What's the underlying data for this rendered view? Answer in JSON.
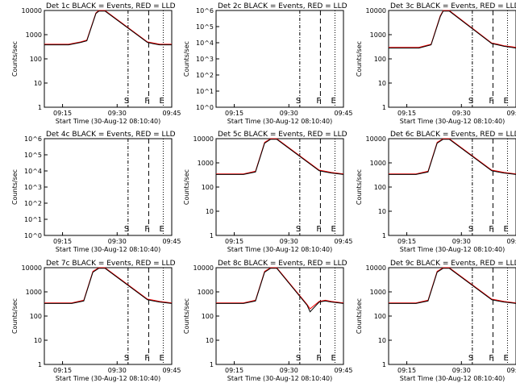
{
  "colors": {
    "events": "#000000",
    "lld": "#ff0000",
    "axis": "#000000",
    "background": "#ffffff"
  },
  "legend_text": "BLACK = Events, RED = LLD",
  "chart_data": [
    {
      "type": "line",
      "title": "Det 1c BLACK = Events, RED = LLD",
      "xlabel": "Start Time (30-Aug-12 08:10:40)",
      "ylabel": "Counts/sec",
      "xlim": [
        0,
        2100
      ],
      "xticks": [
        {
          "v": 300,
          "label": "09:15"
        },
        {
          "v": 1200,
          "label": "09:30"
        },
        {
          "v": 2100,
          "label": "09:45"
        }
      ],
      "yscale": "log",
      "ylim": [
        1,
        10000
      ],
      "ytick_labels": [
        "1",
        "10",
        "100",
        "1000",
        "10000"
      ],
      "markers": [
        {
          "x": 1380,
          "label": "S",
          "style": "dashdot"
        },
        {
          "x": 1720,
          "label": "F",
          "style": "dashed"
        },
        {
          "x": 1960,
          "label": "E",
          "style": "dotted"
        }
      ],
      "series": [
        {
          "name": "LLD",
          "color": "#ff0000",
          "x": [
            0,
            400,
            600,
            700,
            850,
            900,
            1000,
            1700,
            1800,
            1900,
            2100
          ],
          "y": [
            400,
            400,
            500,
            600,
            8000,
            10000,
            10000,
            500,
            450,
            400,
            400
          ]
        },
        {
          "name": "Events",
          "color": "#000000",
          "x": [
            0,
            400,
            600,
            700,
            850,
            900,
            1000,
            1700,
            1800,
            1900,
            2100
          ],
          "y": [
            380,
            380,
            480,
            560,
            7500,
            9500,
            9500,
            480,
            420,
            380,
            380
          ]
        }
      ]
    },
    {
      "type": "line",
      "title": "Det 2c BLACK = Events, RED = LLD",
      "xlabel": "Start Time (30-Aug-12 08:10:40)",
      "ylabel": "Counts/sec",
      "xlim": [
        0,
        2100
      ],
      "xticks": [
        {
          "v": 300,
          "label": "09:15"
        },
        {
          "v": 1200,
          "label": "09:30"
        },
        {
          "v": 2100,
          "label": "09:45"
        }
      ],
      "yscale": "log",
      "ylim": [
        1,
        1000000
      ],
      "ytick_labels": [
        "10^0",
        "10^1",
        "10^2",
        "10^3",
        "10^4",
        "10^5",
        "10^6"
      ],
      "markers": [
        {
          "x": 1380,
          "label": "S",
          "style": "dashdot"
        },
        {
          "x": 1720,
          "label": "F",
          "style": "dashed"
        },
        {
          "x": 1960,
          "label": "E",
          "style": "dotted"
        }
      ],
      "series": []
    },
    {
      "type": "line",
      "title": "Det 3c BLACK = Events, RED = LLD",
      "xlabel": "Start Time (30-Aug-12 08:10:40)",
      "ylabel": "Counts/sec",
      "xlim": [
        0,
        2100
      ],
      "xticks": [
        {
          "v": 300,
          "label": "09:15"
        },
        {
          "v": 1200,
          "label": "09:30"
        },
        {
          "v": 2100,
          "label": "09:45"
        }
      ],
      "yscale": "log",
      "ylim": [
        1,
        10000
      ],
      "ytick_labels": [
        "1",
        "10",
        "100",
        "1000",
        "10000"
      ],
      "markers": [
        {
          "x": 1380,
          "label": "S",
          "style": "dashdot"
        },
        {
          "x": 1720,
          "label": "F",
          "style": "dashed"
        },
        {
          "x": 1960,
          "label": "E",
          "style": "dotted"
        }
      ],
      "series": [
        {
          "name": "LLD",
          "color": "#ff0000",
          "x": [
            0,
            500,
            700,
            850,
            900,
            1000,
            1700,
            1800,
            1900,
            2100
          ],
          "y": [
            300,
            300,
            400,
            6000,
            10000,
            10000,
            450,
            400,
            350,
            300
          ]
        },
        {
          "name": "Events",
          "color": "#000000",
          "x": [
            0,
            500,
            700,
            850,
            900,
            1000,
            1700,
            1800,
            1900,
            2100
          ],
          "y": [
            280,
            280,
            380,
            5500,
            9500,
            9500,
            430,
            380,
            330,
            280
          ]
        }
      ]
    },
    {
      "type": "line",
      "title": "Det 4c BLACK = Events, RED = LLD",
      "xlabel": "Start Time (30-Aug-12 08:10:40)",
      "ylabel": "Counts/sec",
      "xlim": [
        0,
        2100
      ],
      "xticks": [
        {
          "v": 300,
          "label": "09:15"
        },
        {
          "v": 1200,
          "label": "09:30"
        },
        {
          "v": 2100,
          "label": "09:45"
        }
      ],
      "yscale": "log",
      "ylim": [
        1,
        1000000
      ],
      "ytick_labels": [
        "10^0",
        "10^1",
        "10^2",
        "10^3",
        "10^4",
        "10^5",
        "10^6"
      ],
      "markers": [
        {
          "x": 1380,
          "label": "S",
          "style": "dashdot"
        },
        {
          "x": 1720,
          "label": "F",
          "style": "dashed"
        },
        {
          "x": 1960,
          "label": "E",
          "style": "dotted"
        }
      ],
      "series": []
    },
    {
      "type": "line",
      "title": "Det 5c BLACK = Events, RED = LLD",
      "xlabel": "Start Time (30-Aug-12 08:10:40)",
      "ylabel": "Counts/sec",
      "xlim": [
        0,
        2100
      ],
      "xticks": [
        {
          "v": 300,
          "label": "09:15"
        },
        {
          "v": 1200,
          "label": "09:30"
        },
        {
          "v": 2100,
          "label": "09:45"
        }
      ],
      "yscale": "log",
      "ylim": [
        1,
        10000
      ],
      "ytick_labels": [
        "1",
        "10",
        "100",
        "1000",
        "10000"
      ],
      "markers": [
        {
          "x": 1380,
          "label": "S",
          "style": "dashdot"
        },
        {
          "x": 1720,
          "label": "F",
          "style": "dashed"
        },
        {
          "x": 1960,
          "label": "E",
          "style": "dotted"
        }
      ],
      "series": [
        {
          "name": "LLD",
          "color": "#ff0000",
          "x": [
            0,
            450,
            650,
            800,
            900,
            1000,
            1700,
            1800,
            1900,
            2100
          ],
          "y": [
            350,
            350,
            450,
            7000,
            10000,
            10000,
            500,
            450,
            400,
            350
          ]
        },
        {
          "name": "Events",
          "color": "#000000",
          "x": [
            0,
            450,
            650,
            800,
            900,
            1000,
            1700,
            1800,
            1900,
            2100
          ],
          "y": [
            330,
            330,
            420,
            6500,
            9500,
            9500,
            470,
            420,
            380,
            330
          ]
        }
      ]
    },
    {
      "type": "line",
      "title": "Det 6c BLACK = Events, RED = LLD",
      "xlabel": "Start Time (30-Aug-12 08:10:40)",
      "ylabel": "Counts/sec",
      "xlim": [
        0,
        2100
      ],
      "xticks": [
        {
          "v": 300,
          "label": "09:15"
        },
        {
          "v": 1200,
          "label": "09:30"
        },
        {
          "v": 2100,
          "label": "09:45"
        }
      ],
      "yscale": "log",
      "ylim": [
        1,
        10000
      ],
      "ytick_labels": [
        "1",
        "10",
        "100",
        "1000",
        "10000"
      ],
      "markers": [
        {
          "x": 1380,
          "label": "S",
          "style": "dashdot"
        },
        {
          "x": 1720,
          "label": "F",
          "style": "dashed"
        },
        {
          "x": 1960,
          "label": "E",
          "style": "dotted"
        }
      ],
      "series": [
        {
          "name": "LLD",
          "color": "#ff0000",
          "x": [
            0,
            450,
            650,
            800,
            900,
            1000,
            1700,
            1800,
            1900,
            2100
          ],
          "y": [
            350,
            350,
            450,
            7000,
            10000,
            10000,
            500,
            450,
            400,
            350
          ]
        },
        {
          "name": "Events",
          "color": "#000000",
          "x": [
            0,
            450,
            650,
            800,
            900,
            1000,
            1700,
            1800,
            1900,
            2100
          ],
          "y": [
            330,
            330,
            420,
            6500,
            9500,
            9500,
            470,
            420,
            380,
            330
          ]
        }
      ]
    },
    {
      "type": "line",
      "title": "Det 7c BLACK = Events, RED = LLD",
      "xlabel": "Start Time (30-Aug-12 08:10:40)",
      "ylabel": "Counts/sec",
      "xlim": [
        0,
        2100
      ],
      "xticks": [
        {
          "v": 300,
          "label": "09:15"
        },
        {
          "v": 1200,
          "label": "09:30"
        },
        {
          "v": 2100,
          "label": "09:45"
        }
      ],
      "yscale": "log",
      "ylim": [
        1,
        10000
      ],
      "ytick_labels": [
        "1",
        "10",
        "100",
        "1000",
        "10000"
      ],
      "markers": [
        {
          "x": 1380,
          "label": "S",
          "style": "dashdot"
        },
        {
          "x": 1720,
          "label": "F",
          "style": "dashed"
        },
        {
          "x": 1960,
          "label": "E",
          "style": "dotted"
        }
      ],
      "series": [
        {
          "name": "LLD",
          "color": "#ff0000",
          "x": [
            0,
            450,
            650,
            800,
            900,
            1000,
            1700,
            1800,
            1900,
            2100
          ],
          "y": [
            350,
            350,
            450,
            7000,
            10000,
            10000,
            500,
            450,
            400,
            350
          ]
        },
        {
          "name": "Events",
          "color": "#000000",
          "x": [
            0,
            450,
            650,
            800,
            900,
            1000,
            1700,
            1800,
            1900,
            2100
          ],
          "y": [
            330,
            330,
            420,
            6500,
            9500,
            9500,
            470,
            420,
            380,
            330
          ]
        }
      ]
    },
    {
      "type": "line",
      "title": "Det 8c BLACK = Events, RED = LLD",
      "xlabel": "Start Time (30-Aug-12 08:10:40)",
      "ylabel": "Counts/sec",
      "xlim": [
        0,
        2100
      ],
      "xticks": [
        {
          "v": 300,
          "label": "09:15"
        },
        {
          "v": 1200,
          "label": "09:30"
        },
        {
          "v": 2100,
          "label": "09:45"
        }
      ],
      "yscale": "log",
      "ylim": [
        1,
        10000
      ],
      "ytick_labels": [
        "1",
        "10",
        "100",
        "1000",
        "10000"
      ],
      "markers": [
        {
          "x": 1380,
          "label": "S",
          "style": "dashdot"
        },
        {
          "x": 1720,
          "label": "F",
          "style": "dashed"
        },
        {
          "x": 1960,
          "label": "E",
          "style": "dotted"
        }
      ],
      "series": [
        {
          "name": "LLD",
          "color": "#ff0000",
          "x": [
            0,
            450,
            650,
            800,
            900,
            1000,
            1500,
            1550,
            1700,
            1800,
            1900,
            2100
          ],
          "y": [
            350,
            350,
            450,
            7000,
            10000,
            10000,
            300,
            200,
            400,
            450,
            400,
            350
          ]
        },
        {
          "name": "Events",
          "color": "#000000",
          "x": [
            0,
            450,
            650,
            800,
            900,
            1000,
            1500,
            1550,
            1700,
            1800,
            1900,
            2100
          ],
          "y": [
            330,
            330,
            420,
            6500,
            9500,
            9500,
            280,
            150,
            380,
            420,
            380,
            330
          ]
        }
      ]
    },
    {
      "type": "line",
      "title": "Det 9c BLACK = Events, RED = LLD",
      "xlabel": "Start Time (30-Aug-12 08:10:40)",
      "ylabel": "Counts/sec",
      "xlim": [
        0,
        2100
      ],
      "xticks": [
        {
          "v": 300,
          "label": "09:15"
        },
        {
          "v": 1200,
          "label": "09:30"
        },
        {
          "v": 2100,
          "label": "09:45"
        }
      ],
      "yscale": "log",
      "ylim": [
        1,
        10000
      ],
      "ytick_labels": [
        "1",
        "10",
        "100",
        "1000",
        "10000"
      ],
      "markers": [
        {
          "x": 1380,
          "label": "S",
          "style": "dashdot"
        },
        {
          "x": 1720,
          "label": "F",
          "style": "dashed"
        },
        {
          "x": 1960,
          "label": "E",
          "style": "dotted"
        }
      ],
      "series": [
        {
          "name": "LLD",
          "color": "#ff0000",
          "x": [
            0,
            450,
            650,
            800,
            900,
            1000,
            1700,
            1800,
            1900,
            2100
          ],
          "y": [
            350,
            350,
            450,
            7000,
            10000,
            10000,
            500,
            450,
            400,
            350
          ]
        },
        {
          "name": "Events",
          "color": "#000000",
          "x": [
            0,
            450,
            650,
            800,
            900,
            1000,
            1700,
            1800,
            1900,
            2100
          ],
          "y": [
            330,
            330,
            420,
            6500,
            9500,
            9500,
            470,
            420,
            380,
            330
          ]
        }
      ]
    }
  ]
}
